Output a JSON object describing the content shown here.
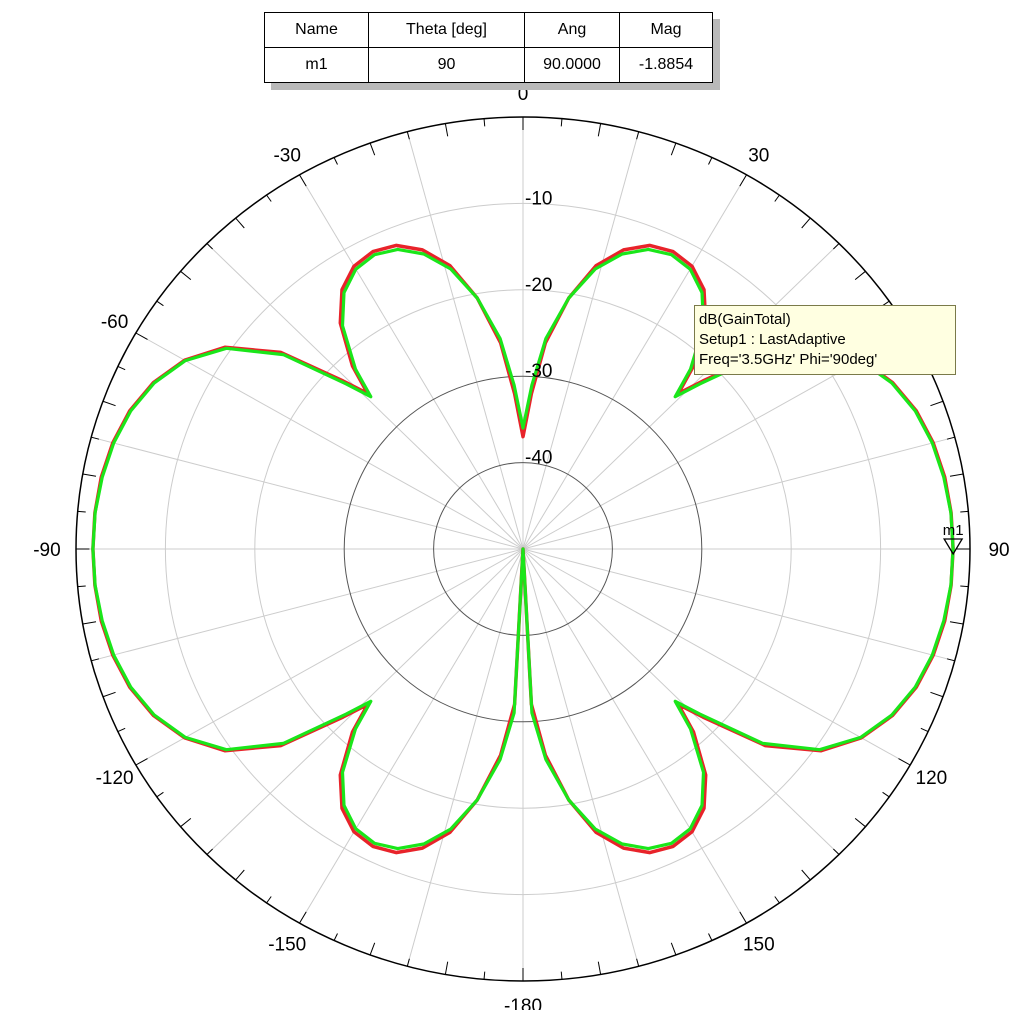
{
  "marker_table": {
    "headers": [
      "Name",
      "Theta [deg]",
      "Ang",
      "Mag"
    ],
    "rows": [
      [
        "m1",
        "90",
        "90.0000",
        "-1.8854"
      ]
    ]
  },
  "legend": {
    "lines": [
      "dB(GainTotal)",
      "Setup1 : LastAdaptive",
      "Freq='3.5GHz' Phi='90deg'"
    ]
  },
  "colors": {
    "series_red": "#e8232a",
    "series_green": "#1ae61a",
    "grid": "#cccccc",
    "rings": "#000000"
  },
  "chart_data": {
    "type": "polar",
    "angle_unit": "deg",
    "angle_ticks": [
      "0",
      "30",
      "60",
      "90",
      "120",
      "150",
      "-180",
      "-150",
      "-120",
      "-90",
      "-60",
      "-30"
    ],
    "radial_ticks": [
      "-10",
      "-20",
      "-30",
      "-40"
    ],
    "radial_range_db": [
      -50,
      0
    ],
    "marker": {
      "name": "m1",
      "theta": 90,
      "value_db": -1.8854
    },
    "series": [
      {
        "color": "#e8232a",
        "points": [
          [
            0,
            -37
          ],
          [
            3,
            -32
          ],
          [
            6,
            -26
          ],
          [
            10,
            -20.5
          ],
          [
            14,
            -16.2
          ],
          [
            18,
            -13.6
          ],
          [
            22,
            -12.1
          ],
          [
            26,
            -11.7
          ],
          [
            30,
            -12.2
          ],
          [
            34,
            -13.8
          ],
          [
            38,
            -16.8
          ],
          [
            42,
            -21.5
          ],
          [
            44,
            -25
          ],
          [
            46,
            -22
          ],
          [
            50,
            -14.6
          ],
          [
            55,
            -9.3
          ],
          [
            60,
            -6.3
          ],
          [
            65,
            -4.4
          ],
          [
            70,
            -3.2
          ],
          [
            75,
            -2.5
          ],
          [
            80,
            -2.1
          ],
          [
            85,
            -1.93
          ],
          [
            90,
            -1.89
          ],
          [
            95,
            -1.93
          ],
          [
            100,
            -2.1
          ],
          [
            105,
            -2.5
          ],
          [
            110,
            -3.2
          ],
          [
            115,
            -4.4
          ],
          [
            120,
            -6.3
          ],
          [
            125,
            -9.3
          ],
          [
            130,
            -14.6
          ],
          [
            134,
            -22
          ],
          [
            136,
            -25
          ],
          [
            138,
            -21.5
          ],
          [
            142,
            -16.8
          ],
          [
            146,
            -13.8
          ],
          [
            150,
            -12.2
          ],
          [
            154,
            -11.7
          ],
          [
            158,
            -12.1
          ],
          [
            162,
            -13.6
          ],
          [
            166,
            -16.2
          ],
          [
            170,
            -20.5
          ],
          [
            174,
            -26
          ],
          [
            177,
            -32
          ],
          [
            180,
            -50
          ]
        ]
      },
      {
        "color": "#1ae61a",
        "points": [
          [
            0,
            -36
          ],
          [
            3,
            -31
          ],
          [
            6,
            -25.5
          ],
          [
            10,
            -20.5
          ],
          [
            14,
            -16.6
          ],
          [
            18,
            -14.1
          ],
          [
            22,
            -12.6
          ],
          [
            26,
            -12.1
          ],
          [
            30,
            -12.6
          ],
          [
            34,
            -14.2
          ],
          [
            38,
            -17.2
          ],
          [
            42,
            -22
          ],
          [
            44,
            -25.5
          ],
          [
            46,
            -22.5
          ],
          [
            50,
            -15
          ],
          [
            55,
            -9.5
          ],
          [
            60,
            -6.4
          ],
          [
            65,
            -4.5
          ],
          [
            70,
            -3.3
          ],
          [
            75,
            -2.6
          ],
          [
            80,
            -2.2
          ],
          [
            85,
            -1.95
          ],
          [
            90,
            -1.89
          ],
          [
            95,
            -1.95
          ],
          [
            100,
            -2.2
          ],
          [
            105,
            -2.6
          ],
          [
            110,
            -3.3
          ],
          [
            115,
            -4.5
          ],
          [
            120,
            -6.4
          ],
          [
            125,
            -9.5
          ],
          [
            130,
            -15
          ],
          [
            134,
            -22.5
          ],
          [
            136,
            -25.5
          ],
          [
            138,
            -22
          ],
          [
            142,
            -17.2
          ],
          [
            146,
            -14.2
          ],
          [
            150,
            -12.6
          ],
          [
            154,
            -12.1
          ],
          [
            158,
            -12.6
          ],
          [
            162,
            -14.1
          ],
          [
            166,
            -16.6
          ],
          [
            170,
            -20.5
          ],
          [
            174,
            -25.5
          ],
          [
            177,
            -31
          ],
          [
            180,
            -50
          ]
        ]
      }
    ]
  }
}
